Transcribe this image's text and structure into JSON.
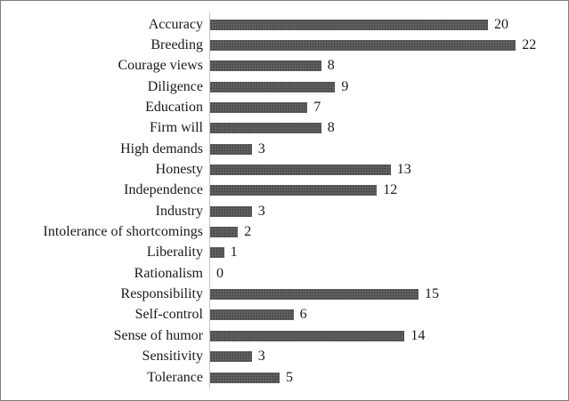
{
  "figure": {
    "background": "#ffffff",
    "border_color": "#7d7d7d"
  },
  "chart_data": {
    "type": "bar",
    "orientation": "horizontal",
    "title": "",
    "xlabel": "",
    "ylabel": "",
    "categories": [
      "Accuracy",
      "Breeding",
      "Courage views",
      "Diligence",
      "Education",
      "Firm will",
      "High demands",
      "Honesty",
      "Independence",
      "Industry",
      "Intolerance of shortcomings",
      "Liberality",
      "Rationalism",
      "Responsibility",
      "Self-control",
      "Sense of humor",
      "Sensitivity",
      "Tolerance"
    ],
    "values": [
      20,
      22,
      8,
      9,
      7,
      8,
      3,
      13,
      12,
      3,
      2,
      1,
      0,
      15,
      6,
      14,
      3,
      5
    ],
    "xlim": [
      0,
      22
    ],
    "grid": false,
    "legend": false,
    "value_labels_shown": true,
    "bar_color": "#616161",
    "axis_color": "#c2c2c2",
    "text_color": "#1a1a1a"
  }
}
